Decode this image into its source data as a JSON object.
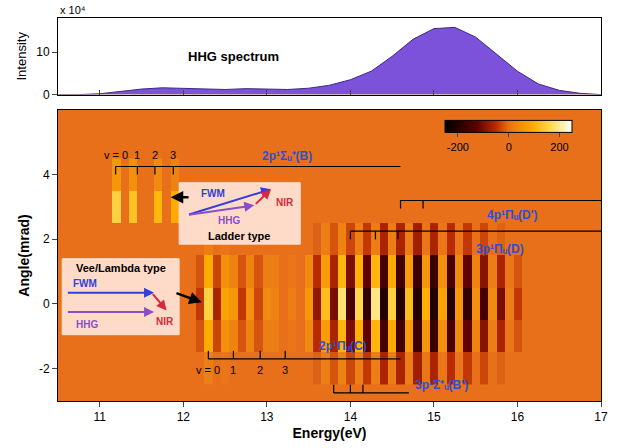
{
  "chart_data": [
    {
      "type": "area",
      "title": "HHG spectrum",
      "y_label": "Intensity",
      "scale_label": "x 10⁴",
      "x": [
        10.5,
        10.75,
        11.0,
        11.25,
        11.5,
        11.75,
        12.0,
        12.25,
        12.5,
        12.75,
        13.0,
        13.25,
        13.5,
        13.75,
        14.0,
        14.25,
        14.5,
        14.75,
        15.0,
        15.25,
        15.5,
        15.75,
        16.0,
        16.25,
        16.5,
        16.75,
        17.0
      ],
      "values": [
        0,
        0,
        0.2,
        0.8,
        1.3,
        1.6,
        1.5,
        1.3,
        1.2,
        1.4,
        1.3,
        1.2,
        1.5,
        2.2,
        3.5,
        5.5,
        9,
        13,
        15.5,
        15.8,
        13.5,
        9.5,
        5.5,
        2.5,
        1,
        0.3,
        0
      ],
      "color": "#7b52d9",
      "xlim": [
        10.5,
        17
      ],
      "xticks": [
        11,
        12,
        13,
        14,
        15,
        16,
        17
      ],
      "ylim": [
        0,
        18
      ],
      "yticks": [
        0,
        10
      ],
      "tick_labels": "y",
      "grid": false
    },
    {
      "type": "heatmap",
      "x_label": "Energy(eV)",
      "y_label": "Angle(mrad)",
      "x": [
        11.0,
        11.1,
        11.2,
        11.3,
        11.4,
        11.5,
        11.6,
        11.7,
        11.8,
        11.9,
        12.0,
        12.1,
        12.2,
        12.3,
        12.4,
        12.5,
        12.6,
        12.7,
        12.8,
        12.9,
        13.0,
        13.1,
        13.2,
        13.3,
        13.4,
        13.5,
        13.6,
        13.7,
        13.8,
        13.9,
        14.0,
        14.1,
        14.2,
        14.3,
        14.4,
        14.5,
        14.6,
        14.7,
        14.8,
        14.9,
        15.0,
        15.1,
        15.2,
        15.3,
        15.4,
        15.5,
        15.6,
        15.7,
        15.8,
        15.9,
        16.0,
        16.1,
        16.2
      ],
      "y": [
        -2,
        -1,
        0,
        1,
        2,
        3,
        4
      ],
      "z": [
        [
          0,
          0,
          0,
          0,
          0,
          0,
          0,
          0,
          0,
          0,
          0,
          0,
          0,
          20,
          0,
          10,
          0,
          0,
          0,
          0,
          0,
          0,
          0,
          0,
          0,
          0,
          -10,
          20,
          -20,
          30,
          -30,
          20,
          -40,
          20,
          -60,
          20,
          -60,
          20,
          -70,
          10,
          -60,
          10,
          -50,
          10,
          -40,
          0,
          -30,
          0,
          -10,
          0,
          0,
          0,
          0
        ],
        [
          0,
          0,
          0,
          0,
          0,
          0,
          0,
          0,
          0,
          0,
          0,
          0,
          -20,
          90,
          -30,
          50,
          30,
          -20,
          30,
          -20,
          20,
          20,
          0,
          10,
          0,
          40,
          -50,
          70,
          -60,
          110,
          -100,
          100,
          -120,
          110,
          -150,
          90,
          -160,
          70,
          -170,
          60,
          -170,
          50,
          -150,
          40,
          -120,
          30,
          -90,
          20,
          -60,
          10,
          -20,
          0,
          0
        ],
        [
          0,
          0,
          0,
          0,
          0,
          0,
          0,
          0,
          0,
          0,
          0,
          0,
          -40,
          150,
          -60,
          80,
          60,
          -40,
          50,
          -30,
          40,
          30,
          0,
          20,
          0,
          60,
          -80,
          120,
          -100,
          180,
          -150,
          160,
          -180,
          190,
          -200,
          150,
          -200,
          120,
          -200,
          100,
          -200,
          80,
          -200,
          60,
          -180,
          50,
          -150,
          40,
          -100,
          20,
          -40,
          0,
          0
        ],
        [
          0,
          0,
          0,
          0,
          0,
          0,
          0,
          0,
          0,
          0,
          0,
          0,
          -20,
          90,
          -30,
          50,
          30,
          -20,
          30,
          -20,
          20,
          20,
          0,
          10,
          0,
          40,
          -50,
          70,
          -60,
          110,
          -100,
          100,
          -120,
          110,
          -150,
          90,
          -160,
          70,
          -170,
          60,
          -170,
          50,
          -150,
          40,
          -120,
          30,
          -90,
          20,
          -60,
          10,
          -20,
          0,
          0
        ],
        [
          0,
          0,
          0,
          0,
          0,
          0,
          0,
          0,
          0,
          0,
          0,
          0,
          0,
          20,
          0,
          10,
          0,
          0,
          0,
          0,
          0,
          0,
          0,
          0,
          0,
          0,
          -10,
          20,
          -20,
          30,
          -30,
          20,
          -40,
          20,
          -60,
          20,
          -60,
          20,
          -70,
          10,
          -60,
          10,
          -50,
          10,
          -40,
          0,
          -30,
          0,
          -10,
          0,
          0,
          0,
          0
        ],
        [
          0,
          0,
          150,
          0,
          130,
          0,
          0,
          110,
          0,
          90,
          0,
          0,
          0,
          0,
          0,
          0,
          0,
          0,
          0,
          0,
          0,
          0,
          0,
          0,
          0,
          0,
          0,
          0,
          0,
          0,
          0,
          0,
          0,
          0,
          0,
          0,
          0,
          0,
          0,
          0,
          0,
          0,
          0,
          0,
          0,
          0,
          0,
          0,
          0,
          0,
          0,
          0,
          0
        ],
        [
          0,
          0,
          60,
          0,
          50,
          0,
          0,
          40,
          0,
          30,
          0,
          0,
          0,
          0,
          0,
          0,
          0,
          0,
          0,
          0,
          0,
          0,
          0,
          0,
          0,
          0,
          0,
          0,
          0,
          0,
          0,
          0,
          0,
          0,
          0,
          0,
          0,
          0,
          0,
          0,
          0,
          0,
          0,
          0,
          0,
          0,
          0,
          0,
          0,
          0,
          0,
          0,
          0
        ]
      ],
      "colorbar_range": [
        -250,
        250
      ],
      "colorbar_ticks": [
        -200,
        0,
        200
      ],
      "xlim": [
        10.5,
        17
      ],
      "xticks": [
        11,
        12,
        13,
        14,
        15,
        16,
        17
      ],
      "ylim": [
        -3,
        6
      ],
      "yticks": [
        -2,
        0,
        2,
        4
      ],
      "grid": false,
      "progressions": [
        {
          "name": "2p¹Σᵤ⁺(B)",
          "levels": [
            11.19,
            11.45,
            11.66,
            11.88
          ],
          "v_labels": [
            "v = 0",
            "1",
            "2",
            "3"
          ],
          "line_y": 4.25,
          "line_end": 14.6
        },
        {
          "name": "4p¹Πᵤ(D')",
          "levels": [
            14.6,
            14.87
          ],
          "line_y": 3.2,
          "line_end": 17
        },
        {
          "name": "3p¹Πᵤ(D)",
          "levels": [
            14.0,
            14.3,
            14.57
          ],
          "line_y": 2.25,
          "line_end": 17
        },
        {
          "name": "2p¹Πᵤ(C)",
          "levels": [
            12.3,
            12.6,
            12.92,
            13.22
          ],
          "v_labels": [
            "v = 0",
            "1",
            "2",
            "3"
          ],
          "line_y": -1.7,
          "line_end": 14.6
        },
        {
          "name": "3p¹Σ⁺ᵤ(B')",
          "levels": [
            13.8,
            14.0,
            14.15
          ],
          "line_y": -2.75,
          "line_end": 14.7
        }
      ],
      "insets": [
        {
          "title": "Ladder type",
          "labels": [
            "FWM",
            "HHG",
            "NIR"
          ]
        },
        {
          "title": "Vee/Lambda type",
          "labels": [
            "FWM",
            "HHG",
            "NIR"
          ]
        }
      ]
    }
  ]
}
